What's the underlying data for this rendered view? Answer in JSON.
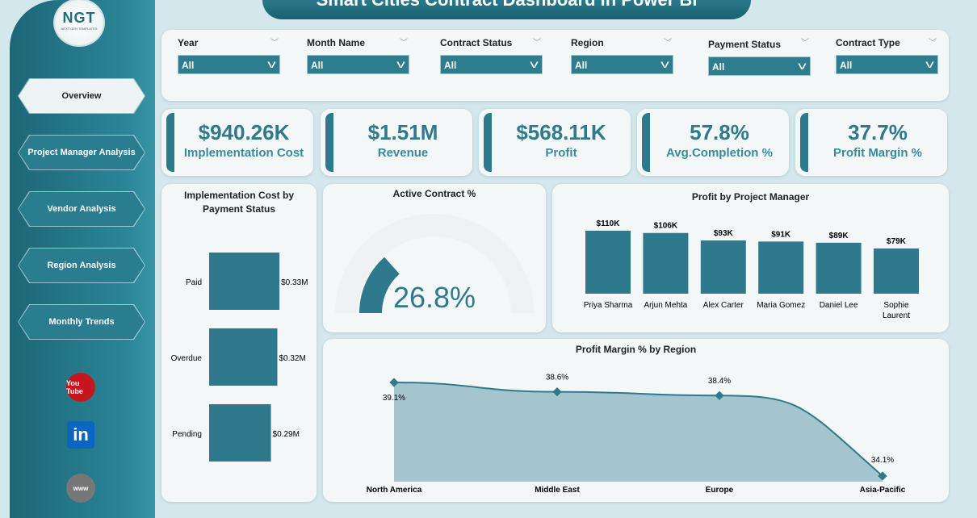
{
  "title": "Smart Cities Contract Dashboard in Power BI",
  "logo": {
    "text": "NGT",
    "subtext": "NEXT GEN TEMPLATES"
  },
  "nav": [
    {
      "label": "Overview",
      "active": true
    },
    {
      "label": "Project Manager Analysis"
    },
    {
      "label": "Vendor Analysis"
    },
    {
      "label": "Region Analysis"
    },
    {
      "label": "Monthly Trends"
    }
  ],
  "social": [
    {
      "icon": "youtube-icon",
      "label": "You Tube"
    },
    {
      "icon": "linkedin-icon",
      "label": "in"
    },
    {
      "icon": "globe-icon",
      "label": "www"
    }
  ],
  "slicers": [
    {
      "label": "Year",
      "value": "All"
    },
    {
      "label": "Month Name",
      "value": "All"
    },
    {
      "label": "Contract Status",
      "value": "All"
    },
    {
      "label": "Region",
      "value": "All"
    },
    {
      "label": "Payment Status",
      "value": "All"
    },
    {
      "label": "Contract Type",
      "value": "All"
    }
  ],
  "kpis": [
    {
      "value": "$940.26K",
      "label": "Implementation Cost"
    },
    {
      "value": "$1.51M",
      "label": "Revenue"
    },
    {
      "value": "$568.11K",
      "label": "Profit"
    },
    {
      "value": "57.8%",
      "label": "Avg.Completion %"
    },
    {
      "value": "37.7%",
      "label": "Profit Margin %"
    }
  ],
  "colors": {
    "accent": "#2e7a8c",
    "sidebar": "#1d6676",
    "background": "#d3e7ed"
  },
  "chart_data": [
    {
      "type": "bar",
      "orientation": "horizontal",
      "title": "Implementation Cost by Payment Status",
      "categories": [
        "Paid",
        "Overdue",
        "Pending"
      ],
      "values": [
        0.33,
        0.32,
        0.29
      ],
      "labels": [
        "$0.33M",
        "$0.32M",
        "$0.29M"
      ],
      "unit": "M"
    },
    {
      "type": "gauge",
      "title": "Active Contract %",
      "value": 26.8,
      "label": "26.8%",
      "max": 100
    },
    {
      "type": "bar",
      "title": "Profit by Project Manager",
      "categories": [
        "Priya Sharma",
        "Arjun Mehta",
        "Alex Carter",
        "Maria Gomez",
        "Daniel Lee",
        "Sophie Laurent"
      ],
      "values": [
        110,
        106,
        93,
        91,
        89,
        79
      ],
      "labels": [
        "$110K",
        "$106K",
        "$93K",
        "$91K",
        "$89K",
        "$79K"
      ],
      "unit": "K"
    },
    {
      "type": "area",
      "title": "Profit Margin % by Region",
      "categories": [
        "North America",
        "Middle East",
        "Europe",
        "Asia-Pacific"
      ],
      "values": [
        39.1,
        38.6,
        38.4,
        34.1
      ],
      "labels": [
        "39.1%",
        "38.6%",
        "38.4%",
        "34.1%"
      ]
    }
  ]
}
